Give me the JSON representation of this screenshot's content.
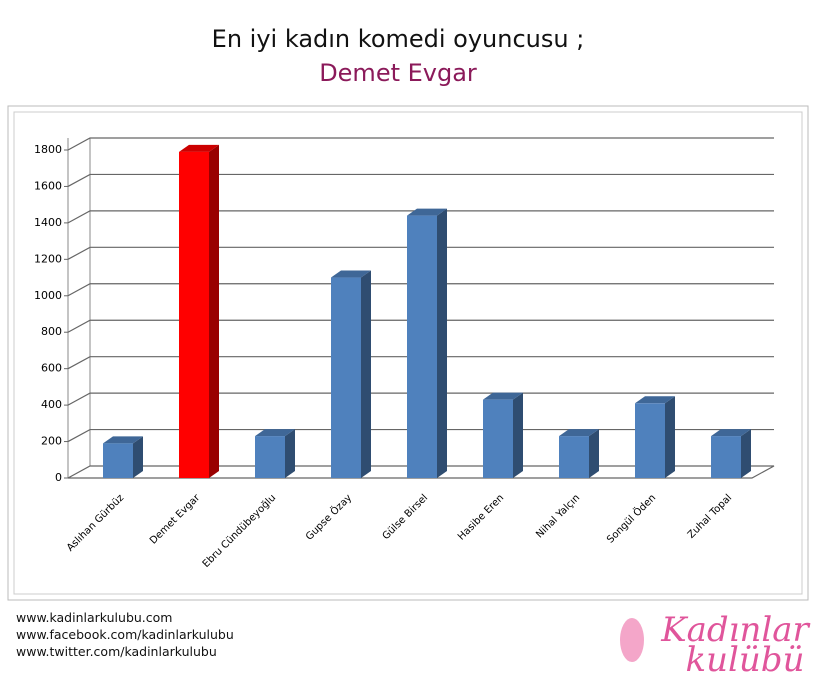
{
  "chart_data": {
    "type": "bar3d",
    "title": "En iyi kadın komedi oyuncusu ;",
    "subtitle": "Demet Evgar",
    "categories": [
      "Aslıhan Gürbüz",
      "Demet Evgar",
      "Ebru Cündübeyoğlu",
      "Gupse Özay",
      "Gülse Birsel",
      "Hasibe Eren",
      "Nihal Yalçın",
      "Songül Öden",
      "Zuhal Topal"
    ],
    "values": [
      190,
      1790,
      230,
      1100,
      1440,
      430,
      230,
      410,
      230
    ],
    "colors": [
      "#4f81bd",
      "#ff0000",
      "#4f81bd",
      "#4f81bd",
      "#4f81bd",
      "#4f81bd",
      "#4f81bd",
      "#4f81bd",
      "#4f81bd"
    ],
    "ylim": [
      0,
      1800
    ],
    "yticks": [
      0,
      200,
      400,
      600,
      800,
      1000,
      1200,
      1400,
      1600,
      1800
    ],
    "grid": true
  },
  "footer": {
    "links": [
      "www.kadinlarkulubu.com",
      "www.facebook.com/kadinlarkulubu",
      "www.twitter.com/kadinlarkulubu"
    ],
    "logo": [
      "Kadınlar",
      "kulübü"
    ]
  }
}
